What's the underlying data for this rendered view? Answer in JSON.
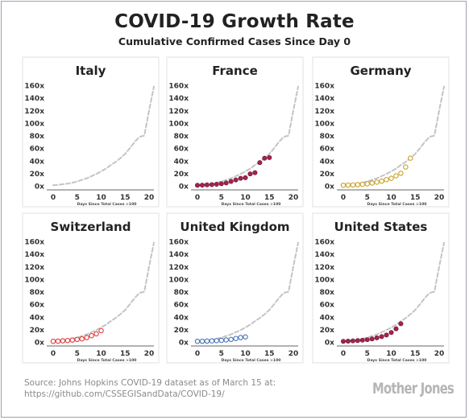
{
  "header": {
    "title": "COVID-19 Growth Rate",
    "subtitle": "Cumulative Confirmed Cases Since Day 0"
  },
  "footer": {
    "source_line1": "Source: Johns Hopkins COVID-19 dataset as of March 15 at:",
    "source_line2": "https://github.com/CSSEGISandData/COVID-19/",
    "brand": "Mother Jones"
  },
  "colors": {
    "reference_line": "#c4c4c4",
    "france": "#a3234c",
    "germany": "#c9a227",
    "switzerland": "#e03c3c",
    "united_kingdom": "#4a74b4",
    "united_states": "#a3234c"
  },
  "chart_data": [
    {
      "type": "line",
      "title": "Italy",
      "xlabel": "",
      "ylabel": "",
      "xlim": [
        0,
        21
      ],
      "ylim": [
        0,
        160
      ],
      "xticks": [
        0,
        5,
        10,
        15,
        20
      ],
      "yticks": [
        "0x",
        "20x",
        "40x",
        "60x",
        "80x",
        "100x",
        "120x",
        "140x",
        "160x"
      ],
      "grid": false,
      "reference": {
        "x": [
          0,
          1,
          2,
          3,
          4,
          5,
          6,
          7,
          8,
          9,
          10,
          11,
          12,
          13,
          14,
          15,
          16,
          17,
          18,
          19,
          20,
          21
        ],
        "y": [
          1,
          1.5,
          2.5,
          3.5,
          5,
          7,
          9.5,
          12,
          15.5,
          19,
          23,
          27.5,
          33,
          38,
          44,
          51,
          60,
          70,
          78,
          80,
          120,
          158
        ]
      },
      "series": []
    },
    {
      "type": "line",
      "title": "France",
      "xlabel": "",
      "ylabel": "",
      "xlim": [
        0,
        21
      ],
      "ylim": [
        0,
        160
      ],
      "xticks": [
        0,
        5,
        10,
        15,
        20
      ],
      "yticks": [
        "0x",
        "20x",
        "40x",
        "60x",
        "80x",
        "100x",
        "120x",
        "140x",
        "160x"
      ],
      "grid": false,
      "reference": {
        "x": [
          0,
          1,
          2,
          3,
          4,
          5,
          6,
          7,
          8,
          9,
          10,
          11,
          12,
          13,
          14,
          15,
          16,
          17,
          18,
          19,
          20,
          21
        ],
        "y": [
          1,
          1.5,
          2.5,
          3.5,
          5,
          7,
          9.5,
          12,
          15.5,
          19,
          23,
          27.5,
          33,
          38,
          44,
          51,
          60,
          70,
          78,
          80,
          120,
          158
        ]
      },
      "series": [
        {
          "color": "#a3234c",
          "filled": true,
          "x": [
            0,
            1,
            2,
            3,
            4,
            5,
            6,
            7,
            8,
            9,
            10,
            11,
            12,
            13,
            14,
            15
          ],
          "y": [
            1,
            1.2,
            1.6,
            2,
            2.6,
            3.4,
            4.7,
            7,
            9.5,
            12,
            13,
            19,
            21,
            37,
            44,
            45
          ]
        }
      ]
    },
    {
      "type": "line",
      "title": "Germany",
      "xlabel": "",
      "ylabel": "",
      "xlim": [
        0,
        21
      ],
      "ylim": [
        0,
        160
      ],
      "xticks": [
        0,
        5,
        10,
        15,
        20
      ],
      "yticks": [
        "0x",
        "20x",
        "40x",
        "60x",
        "80x",
        "100x",
        "120x",
        "140x",
        "160x"
      ],
      "grid": false,
      "reference": {
        "x": [
          0,
          1,
          2,
          3,
          4,
          5,
          6,
          7,
          8,
          9,
          10,
          11,
          12,
          13,
          14,
          15,
          16,
          17,
          18,
          19,
          20,
          21
        ],
        "y": [
          1,
          1.5,
          2.5,
          3.5,
          5,
          7,
          9.5,
          12,
          15.5,
          19,
          23,
          27.5,
          33,
          38,
          44,
          51,
          60,
          70,
          78,
          80,
          120,
          158
        ]
      },
      "series": [
        {
          "color": "#c9a227",
          "filled": false,
          "x": [
            0,
            1,
            2,
            3,
            4,
            5,
            6,
            7,
            8,
            9,
            10,
            11,
            12,
            13,
            14
          ],
          "y": [
            1,
            1.2,
            1.5,
            1.9,
            2.5,
            3.3,
            4.5,
            6,
            7.5,
            10,
            12,
            16,
            20,
            30,
            44
          ]
        }
      ]
    },
    {
      "type": "line",
      "title": "Switzerland",
      "xlabel": "",
      "ylabel": "",
      "xlim": [
        0,
        21
      ],
      "ylim": [
        0,
        160
      ],
      "xticks": [
        0,
        5,
        10,
        15,
        20
      ],
      "yticks": [
        "0x",
        "20x",
        "40x",
        "60x",
        "80x",
        "100x",
        "120x",
        "140x",
        "160x"
      ],
      "grid": false,
      "reference": {
        "x": [
          0,
          1,
          2,
          3,
          4,
          5,
          6,
          7,
          8,
          9,
          10,
          11,
          12,
          13,
          14,
          15,
          16,
          17,
          18,
          19,
          20,
          21
        ],
        "y": [
          1,
          1.5,
          2.5,
          3.5,
          5,
          7,
          9.5,
          12,
          15.5,
          19,
          23,
          27.5,
          33,
          38,
          44,
          51,
          60,
          70,
          78,
          80,
          120,
          158
        ]
      },
      "series": [
        {
          "color": "#e03c3c",
          "filled": false,
          "x": [
            0,
            1,
            2,
            3,
            4,
            5,
            6,
            7,
            8,
            9,
            10
          ],
          "y": [
            1,
            1.3,
            1.8,
            2.3,
            3,
            4,
            5,
            7,
            10,
            13,
            18
          ]
        }
      ]
    },
    {
      "type": "line",
      "title": "United Kingdom",
      "xlabel": "",
      "ylabel": "",
      "xlim": [
        0,
        21
      ],
      "ylim": [
        0,
        160
      ],
      "xticks": [
        0,
        5,
        10,
        15,
        20
      ],
      "yticks": [
        "0x",
        "20x",
        "40x",
        "60x",
        "80x",
        "100x",
        "120x",
        "140x",
        "160x"
      ],
      "grid": false,
      "reference": {
        "x": [
          0,
          1,
          2,
          3,
          4,
          5,
          6,
          7,
          8,
          9,
          10,
          11,
          12,
          13,
          14,
          15,
          16,
          17,
          18,
          19,
          20,
          21
        ],
        "y": [
          1,
          1.5,
          2.5,
          3.5,
          5,
          7,
          9.5,
          12,
          15.5,
          19,
          23,
          27.5,
          33,
          38,
          44,
          51,
          60,
          70,
          78,
          80,
          120,
          158
        ]
      },
      "series": [
        {
          "color": "#4a74b4",
          "filled": false,
          "x": [
            0,
            1,
            2,
            3,
            4,
            5,
            6,
            7,
            8,
            9,
            10
          ],
          "y": [
            1,
            1.1,
            1.4,
            1.7,
            2.1,
            2.6,
            3.2,
            4,
            5.5,
            7,
            8
          ]
        }
      ]
    },
    {
      "type": "line",
      "title": "United States",
      "xlabel": "",
      "ylabel": "",
      "xlim": [
        0,
        21
      ],
      "ylim": [
        0,
        160
      ],
      "xticks": [
        0,
        5,
        10,
        15,
        20
      ],
      "yticks": [
        "0x",
        "20x",
        "40x",
        "60x",
        "80x",
        "100x",
        "120x",
        "140x",
        "160x"
      ],
      "grid": false,
      "reference": {
        "x": [
          0,
          1,
          2,
          3,
          4,
          5,
          6,
          7,
          8,
          9,
          10,
          11,
          12,
          13,
          14,
          15,
          16,
          17,
          18,
          19,
          20,
          21
        ],
        "y": [
          1,
          1.5,
          2.5,
          3.5,
          5,
          7,
          9.5,
          12,
          15.5,
          19,
          23,
          27.5,
          33,
          38,
          44,
          51,
          60,
          70,
          78,
          80,
          120,
          158
        ]
      },
      "series": [
        {
          "color": "#a3234c",
          "filled": true,
          "x": [
            0,
            1,
            2,
            3,
            4,
            5,
            6,
            7,
            8,
            9,
            10,
            11,
            12
          ],
          "y": [
            1,
            1.3,
            1.7,
            2.2,
            2.8,
            3.6,
            4.8,
            6.5,
            8.5,
            11,
            15,
            21,
            29
          ]
        }
      ]
    }
  ],
  "x_axis_caption": "Days Since Total Cases >100"
}
